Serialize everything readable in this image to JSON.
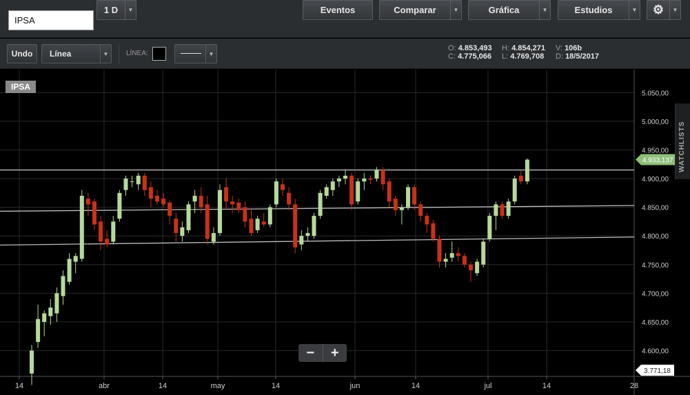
{
  "toolbar": {
    "symbol_value": "IPSA",
    "interval_label": "1 D",
    "eventos_label": "Eventos",
    "comparar_label": "Comparar",
    "grafica_label": "Gráfica",
    "estudios_label": "Estudios"
  },
  "subbar": {
    "undo_label": "Undo",
    "chart_style_label": "Línea",
    "linea_label": "LÍNEA:",
    "ohlc": {
      "o_key": "O:",
      "o_val": "4.853,493",
      "h_key": "H:",
      "h_val": "4.854,271",
      "v_key": "V:",
      "v_val": "106b",
      "c_key": "C:",
      "c_val": "4.775,066",
      "l_key": "L:",
      "l_val": "4.769,708",
      "d_key": "D:",
      "d_val": "18/5/2017"
    }
  },
  "chart": {
    "symbol_label": "IPSA",
    "watchlists_label": "WATCHLISTS",
    "zoom_out": "−",
    "zoom_in": "+"
  },
  "colors": {
    "up": "#b5d99c",
    "down": "#c8311a",
    "grid": "#2a2a2a",
    "line": "#bdbdbd",
    "last_price_bg": "#8fbf7a"
  },
  "chart_data": {
    "type": "candlestick",
    "y_ticks": [
      "4.600,00",
      "4.650,00",
      "4.700,00",
      "4.750,00",
      "4.800,00",
      "4.850,00",
      "4.900,00",
      "4.950,00",
      "5.000,00",
      "5.050,00"
    ],
    "ylim": [
      4555,
      5090
    ],
    "x_ticks": [
      "14",
      "abr",
      "14",
      "may",
      "14",
      "jun",
      "14",
      "jul",
      "14",
      "28"
    ],
    "last_price": "4.933,137",
    "bottom_price": "3.771,18",
    "trend_lines": [
      {
        "from": [
          0,
          4915
        ],
        "to": [
          83,
          4915
        ]
      },
      {
        "from": [
          0,
          4843
        ],
        "to": [
          83,
          4853
        ]
      },
      {
        "from": [
          0,
          4784
        ],
        "to": [
          83,
          4798
        ]
      }
    ],
    "candles": [
      {
        "o": 4560,
        "h": 4610,
        "l": 4540,
        "c": 4600
      },
      {
        "o": 4615,
        "h": 4680,
        "l": 4605,
        "c": 4655
      },
      {
        "o": 4650,
        "h": 4670,
        "l": 4625,
        "c": 4665
      },
      {
        "o": 4660,
        "h": 4690,
        "l": 4645,
        "c": 4675
      },
      {
        "o": 4665,
        "h": 4710,
        "l": 4650,
        "c": 4700
      },
      {
        "o": 4695,
        "h": 4740,
        "l": 4680,
        "c": 4730
      },
      {
        "o": 4720,
        "h": 4770,
        "l": 4715,
        "c": 4760
      },
      {
        "o": 4755,
        "h": 4770,
        "l": 4735,
        "c": 4765
      },
      {
        "o": 4760,
        "h": 4880,
        "l": 4755,
        "c": 4870
      },
      {
        "o": 4865,
        "h": 4875,
        "l": 4835,
        "c": 4855
      },
      {
        "o": 4860,
        "h": 4865,
        "l": 4810,
        "c": 4820
      },
      {
        "o": 4825,
        "h": 4835,
        "l": 4775,
        "c": 4790
      },
      {
        "o": 4795,
        "h": 4810,
        "l": 4780,
        "c": 4785
      },
      {
        "o": 4790,
        "h": 4835,
        "l": 4785,
        "c": 4825
      },
      {
        "o": 4830,
        "h": 4880,
        "l": 4825,
        "c": 4875
      },
      {
        "o": 4880,
        "h": 4905,
        "l": 4870,
        "c": 4900
      },
      {
        "o": 4895,
        "h": 4905,
        "l": 4885,
        "c": 4895
      },
      {
        "o": 4890,
        "h": 4910,
        "l": 4880,
        "c": 4905
      },
      {
        "o": 4905,
        "h": 4910,
        "l": 4870,
        "c": 4880
      },
      {
        "o": 4885,
        "h": 4895,
        "l": 4850,
        "c": 4865
      },
      {
        "o": 4870,
        "h": 4880,
        "l": 4855,
        "c": 4860
      },
      {
        "o": 4865,
        "h": 4875,
        "l": 4850,
        "c": 4855
      },
      {
        "o": 4858,
        "h": 4862,
        "l": 4820,
        "c": 4835
      },
      {
        "o": 4830,
        "h": 4840,
        "l": 4790,
        "c": 4805
      },
      {
        "o": 4800,
        "h": 4825,
        "l": 4790,
        "c": 4815
      },
      {
        "o": 4810,
        "h": 4860,
        "l": 4805,
        "c": 4855
      },
      {
        "o": 4860,
        "h": 4880,
        "l": 4840,
        "c": 4870
      },
      {
        "o": 4870,
        "h": 4885,
        "l": 4840,
        "c": 4850
      },
      {
        "o": 4855,
        "h": 4870,
        "l": 4785,
        "c": 4795
      },
      {
        "o": 4790,
        "h": 4815,
        "l": 4785,
        "c": 4805
      },
      {
        "o": 4805,
        "h": 4890,
        "l": 4800,
        "c": 4880
      },
      {
        "o": 4885,
        "h": 4900,
        "l": 4845,
        "c": 4860
      },
      {
        "o": 4860,
        "h": 4870,
        "l": 4840,
        "c": 4855
      },
      {
        "o": 4858,
        "h": 4865,
        "l": 4840,
        "c": 4845
      },
      {
        "o": 4850,
        "h": 4860,
        "l": 4815,
        "c": 4825
      },
      {
        "o": 4830,
        "h": 4845,
        "l": 4800,
        "c": 4805
      },
      {
        "o": 4810,
        "h": 4835,
        "l": 4805,
        "c": 4830
      },
      {
        "o": 4825,
        "h": 4840,
        "l": 4815,
        "c": 4820
      },
      {
        "o": 4820,
        "h": 4855,
        "l": 4815,
        "c": 4850
      },
      {
        "o": 4855,
        "h": 4900,
        "l": 4850,
        "c": 4895
      },
      {
        "o": 4890,
        "h": 4900,
        "l": 4870,
        "c": 4880
      },
      {
        "o": 4875,
        "h": 4885,
        "l": 4845,
        "c": 4855
      },
      {
        "o": 4855,
        "h": 4865,
        "l": 4770,
        "c": 4780
      },
      {
        "o": 4785,
        "h": 4810,
        "l": 4775,
        "c": 4800
      },
      {
        "o": 4800,
        "h": 4815,
        "l": 4790,
        "c": 4805
      },
      {
        "o": 4800,
        "h": 4840,
        "l": 4795,
        "c": 4835
      },
      {
        "o": 4835,
        "h": 4880,
        "l": 4830,
        "c": 4875
      },
      {
        "o": 4870,
        "h": 4890,
        "l": 4865,
        "c": 4885
      },
      {
        "o": 4880,
        "h": 4900,
        "l": 4870,
        "c": 4895
      },
      {
        "o": 4895,
        "h": 4905,
        "l": 4885,
        "c": 4900
      },
      {
        "o": 4900,
        "h": 4915,
        "l": 4890,
        "c": 4905
      },
      {
        "o": 4905,
        "h": 4910,
        "l": 4845,
        "c": 4855
      },
      {
        "o": 4860,
        "h": 4900,
        "l": 4855,
        "c": 4895
      },
      {
        "o": 4895,
        "h": 4910,
        "l": 4880,
        "c": 4900
      },
      {
        "o": 4900,
        "h": 4905,
        "l": 4890,
        "c": 4898
      },
      {
        "o": 4900,
        "h": 4920,
        "l": 4895,
        "c": 4915
      },
      {
        "o": 4915,
        "h": 4920,
        "l": 4880,
        "c": 4890
      },
      {
        "o": 4895,
        "h": 4900,
        "l": 4850,
        "c": 4860
      },
      {
        "o": 4865,
        "h": 4870,
        "l": 4835,
        "c": 4845
      },
      {
        "o": 4845,
        "h": 4855,
        "l": 4820,
        "c": 4850
      },
      {
        "o": 4850,
        "h": 4890,
        "l": 4845,
        "c": 4885
      },
      {
        "o": 4885,
        "h": 4890,
        "l": 4845,
        "c": 4855
      },
      {
        "o": 4855,
        "h": 4860,
        "l": 4825,
        "c": 4835
      },
      {
        "o": 4835,
        "h": 4840,
        "l": 4805,
        "c": 4820
      },
      {
        "o": 4822,
        "h": 4828,
        "l": 4790,
        "c": 4795
      },
      {
        "o": 4795,
        "h": 4800,
        "l": 4745,
        "c": 4755
      },
      {
        "o": 4755,
        "h": 4770,
        "l": 4745,
        "c": 4760
      },
      {
        "o": 4762,
        "h": 4790,
        "l": 4755,
        "c": 4770
      },
      {
        "o": 4770,
        "h": 4780,
        "l": 4755,
        "c": 4765
      },
      {
        "o": 4765,
        "h": 4770,
        "l": 4745,
        "c": 4750
      },
      {
        "o": 4750,
        "h": 4755,
        "l": 4720,
        "c": 4740
      },
      {
        "o": 4735,
        "h": 4760,
        "l": 4730,
        "c": 4755
      },
      {
        "o": 4750,
        "h": 4795,
        "l": 4745,
        "c": 4790
      },
      {
        "o": 4795,
        "h": 4840,
        "l": 4790,
        "c": 4835
      },
      {
        "o": 4835,
        "h": 4860,
        "l": 4810,
        "c": 4855
      },
      {
        "o": 4855,
        "h": 4860,
        "l": 4830,
        "c": 4835
      },
      {
        "o": 4835,
        "h": 4865,
        "l": 4830,
        "c": 4860
      },
      {
        "o": 4860,
        "h": 4905,
        "l": 4855,
        "c": 4900
      },
      {
        "o": 4905,
        "h": 4915,
        "l": 4890,
        "c": 4895
      },
      {
        "o": 4895,
        "h": 4935,
        "l": 4890,
        "c": 4933
      }
    ]
  }
}
